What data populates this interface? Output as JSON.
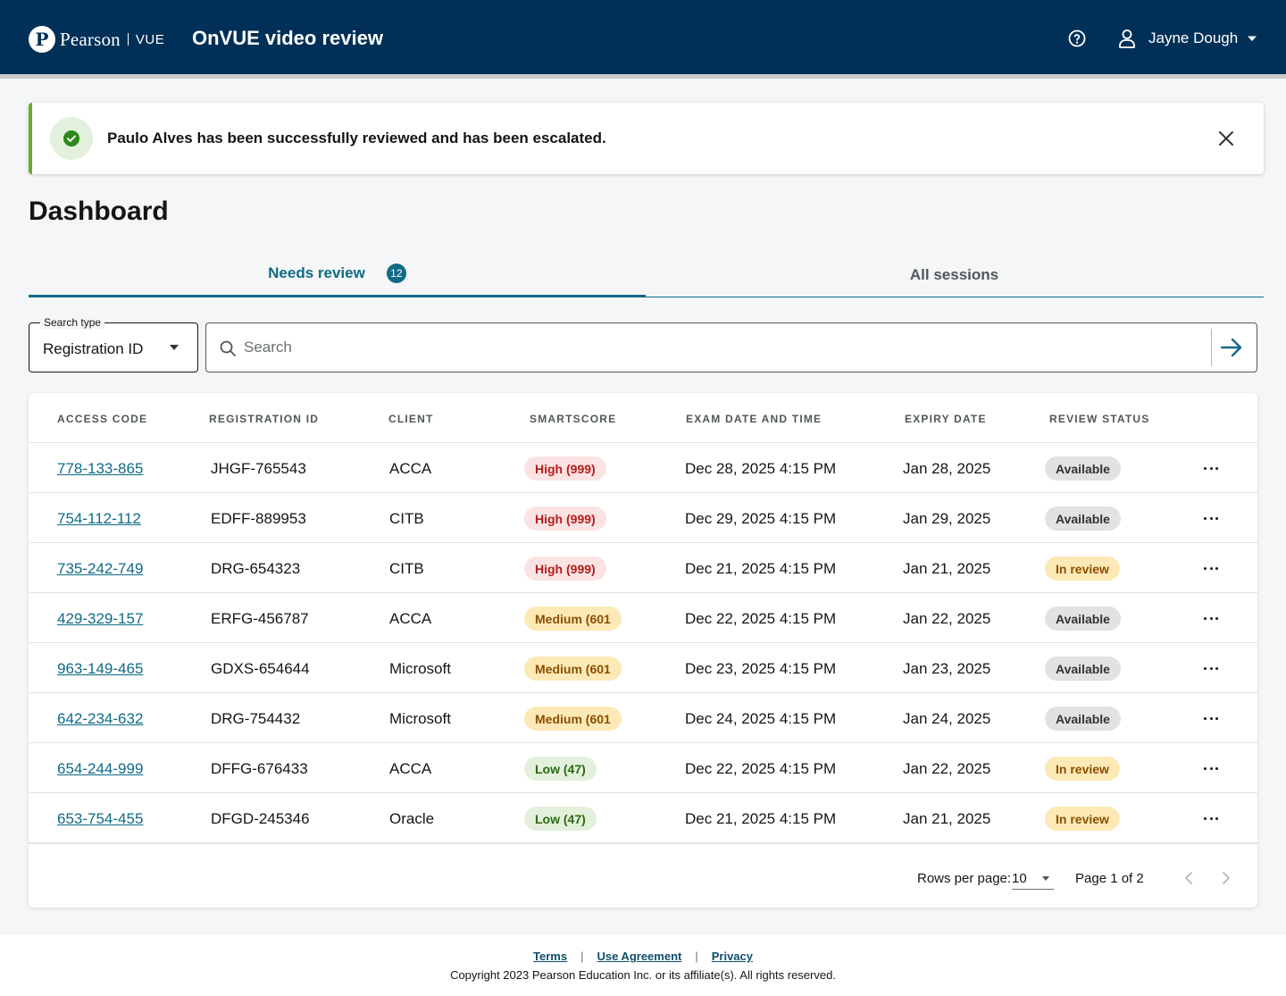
{
  "header": {
    "logo_mark": "P",
    "logo_word": "Pearson",
    "logo_product": "VUE",
    "app_title": "OnVUE video review",
    "user_name": "Jayne Dough",
    "icons": [
      "help-icon",
      "user-icon",
      "chevron-down-icon"
    ]
  },
  "alert": {
    "message": "Paulo Alves has been successfully reviewed and has been escalated.",
    "type": "success",
    "icons": [
      "check-circle-icon",
      "close-icon"
    ]
  },
  "page": {
    "title": "Dashboard"
  },
  "tabs": [
    {
      "label": "Needs review",
      "badge": "12",
      "active": true
    },
    {
      "label": "All sessions",
      "active": false
    }
  ],
  "search": {
    "type_label": "Search type",
    "type_value": "Registration ID",
    "placeholder": "Search",
    "value": ""
  },
  "table": {
    "columns": [
      "ACCESS CODE",
      "REGISTRATION ID",
      "CLIENT",
      "SMARTSCORE",
      "EXAM DATE AND TIME",
      "EXPIRY DATE",
      "REVIEW STATUS"
    ],
    "rows": [
      {
        "access_code": "778-133-865",
        "registration_id": "JHGF-765543",
        "client": "ACCA",
        "smartscore": "High (999)",
        "score_level": "high",
        "exam_datetime": "Dec 28, 2025 4:15 PM",
        "expiry": "Jan 28, 2025",
        "status": "Available"
      },
      {
        "access_code": "754-112-112",
        "registration_id": "EDFF-889953",
        "client": "CITB",
        "smartscore": "High (999)",
        "score_level": "high",
        "exam_datetime": "Dec 29, 2025 4:15 PM",
        "expiry": "Jan 29, 2025",
        "status": "Available"
      },
      {
        "access_code": "735-242-749",
        "registration_id": "DRG-654323",
        "client": "CITB",
        "smartscore": "High (999)",
        "score_level": "high",
        "exam_datetime": "Dec 21, 2025 4:15 PM",
        "expiry": "Jan 21, 2025",
        "status": "In review"
      },
      {
        "access_code": "429-329-157",
        "registration_id": "ERFG-456787",
        "client": "ACCA",
        "smartscore": "Medium (601",
        "score_level": "medium",
        "exam_datetime": "Dec 22, 2025 4:15 PM",
        "expiry": "Jan 22, 2025",
        "status": "Available"
      },
      {
        "access_code": "963-149-465",
        "registration_id": "GDXS-654644",
        "client": "Microsoft",
        "smartscore": "Medium (601",
        "score_level": "medium",
        "exam_datetime": "Dec 23, 2025 4:15 PM",
        "expiry": "Jan 23, 2025",
        "status": "Available"
      },
      {
        "access_code": "642-234-632",
        "registration_id": "DRG-754432",
        "client": "Microsoft",
        "smartscore": "Medium (601",
        "score_level": "medium",
        "exam_datetime": "Dec 24, 2025 4:15 PM",
        "expiry": "Jan 24, 2025",
        "status": "Available"
      },
      {
        "access_code": "654-244-999",
        "registration_id": "DFFG-676433",
        "client": "ACCA",
        "smartscore": "Low (47)",
        "score_level": "low",
        "exam_datetime": "Dec 22, 2025 4:15 PM",
        "expiry": "Jan 22, 2025",
        "status": "In review"
      },
      {
        "access_code": "653-754-455",
        "registration_id": "DFGD-245346",
        "client": "Oracle",
        "smartscore": "Low (47)",
        "score_level": "low",
        "exam_datetime": "Dec 21, 2025 4:15 PM",
        "expiry": "Jan 21, 2025",
        "status": "In review"
      }
    ]
  },
  "pagination": {
    "rows_label": "Rows per page:",
    "rows_value": "10",
    "page_info": "Page 1 of 2"
  },
  "footer": {
    "links": [
      "Terms",
      "Use Agreement",
      "Privacy"
    ],
    "copyright": "Copyright 2023 Pearson Education Inc. or its affiliate(s). All rights reserved."
  },
  "colors": {
    "header_bg": "#003057",
    "accent": "#0f6a86",
    "success": "#6cab2f",
    "high": "#b41d1d",
    "medium": "#8a4f00",
    "low": "#2b6a0f"
  }
}
